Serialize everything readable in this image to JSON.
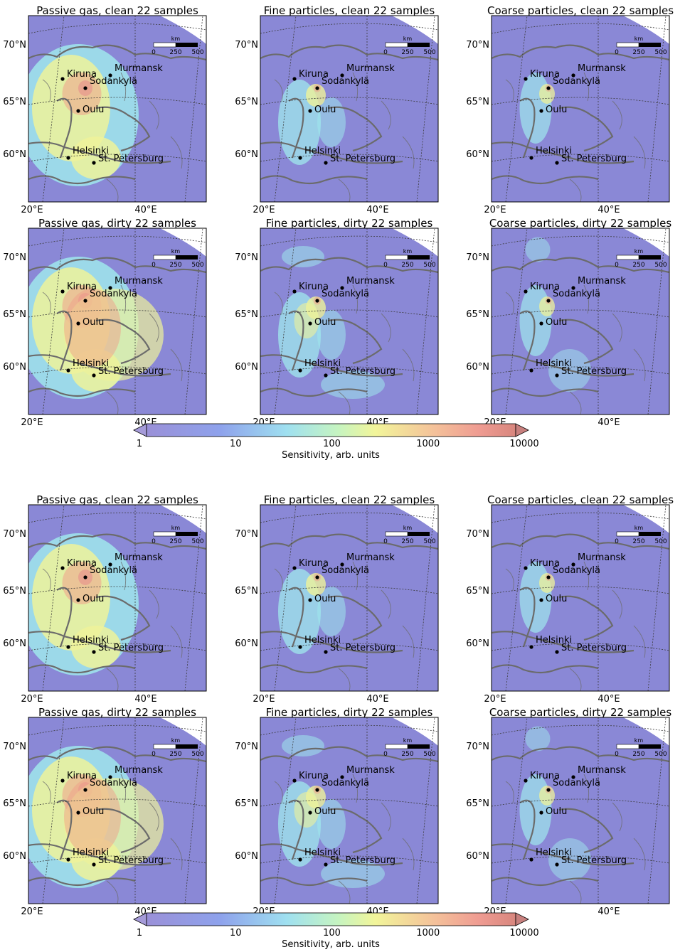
{
  "blocks": [
    {
      "panels": [
        {
          "title": "Passive gas, clean 22 samples",
          "kind": "gas",
          "dirty": false
        },
        {
          "title": "Fine particles, clean 22 samples",
          "kind": "fine",
          "dirty": false
        },
        {
          "title": "Coarse particles, clean 22 samples",
          "kind": "coarse",
          "dirty": false
        },
        {
          "title": "Passive gas, dirty 22 samples",
          "kind": "gas",
          "dirty": true
        },
        {
          "title": "Fine particles, dirty 22 samples",
          "kind": "fine",
          "dirty": true
        },
        {
          "title": "Coarse particles, dirty 22 samples",
          "kind": "coarse",
          "dirty": true
        }
      ],
      "colorbar": {
        "ticks": [
          "1",
          "10",
          "100",
          "1000",
          "10000"
        ],
        "label": "Sensitivity, arb. units"
      }
    },
    {
      "panels": [
        {
          "title": "Passive gas, clean 22 samples",
          "kind": "gas",
          "dirty": false
        },
        {
          "title": "Fine particles, clean 22 samples",
          "kind": "fine",
          "dirty": false
        },
        {
          "title": "Coarse particles, clean 22 samples",
          "kind": "coarse",
          "dirty": false
        },
        {
          "title": "Passive gas, dirty 22 samples",
          "kind": "gas",
          "dirty": true
        },
        {
          "title": "Fine particles, dirty 22 samples",
          "kind": "fine",
          "dirty": true
        },
        {
          "title": "Coarse particles, dirty 22 samples",
          "kind": "coarse",
          "dirty": true
        }
      ],
      "colorbar": {
        "ticks": [
          "1",
          "10",
          "100",
          "1000",
          "10000"
        ],
        "label": "Sensitivity, arb. units"
      }
    }
  ],
  "map": {
    "lat_labels": [
      "70°N",
      "65°N",
      "60°N"
    ],
    "lon_labels": [
      "20°E",
      "40°E"
    ],
    "scalebar": {
      "unit": "km",
      "ticks": [
        "0",
        "250",
        "500"
      ]
    },
    "cities": [
      "Kiruna",
      "Murmansk",
      "Sodankylä",
      "Oulu",
      "Helsinki",
      "St. Petersburg"
    ]
  },
  "colors": {
    "background_low": "#8a88d6",
    "mid_cyan": "#9fe8ec",
    "mid_yellow": "#eef29a",
    "high": "#f0a08a",
    "peak": "#e58a8a",
    "coast": "#6b6b6b",
    "grid": "#3a3a3a"
  }
}
